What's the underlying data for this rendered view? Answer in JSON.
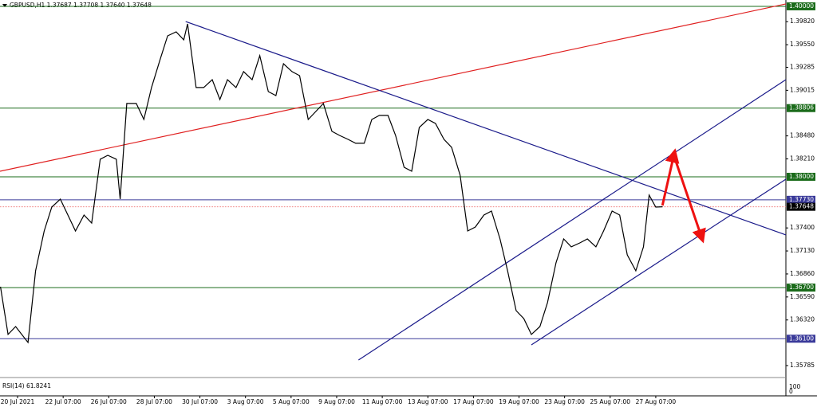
{
  "chart_data": {
    "type": "line",
    "title": "GBPUSD,H1  1.37687 1.37708 1.37640 1.37648",
    "indicator_label": "RSI(14) 61.8241",
    "indicator_ticks": [
      "100",
      "0"
    ],
    "x": [
      -18,
      -10,
      -2,
      11,
      19,
      28,
      36,
      45,
      53,
      61,
      70,
      78,
      87,
      95,
      104,
      108,
      115,
      125,
      133,
      141,
      150,
      158,
      167,
      175,
      179,
      188,
      196,
      205,
      213,
      221,
      230,
      238,
      247,
      255,
      264,
      272,
      280,
      289,
      297,
      306,
      314,
      322,
      331,
      339,
      348,
      356,
      365,
      373,
      381,
      390,
      398,
      407,
      415,
      423,
      432,
      440,
      449,
      457,
      466,
      474,
      482,
      491,
      499,
      508,
      516,
      525,
      533,
      541,
      550,
      558,
      567,
      575,
      583,
      592,
      600,
      609,
      617,
      626,
      634,
      642,
      651,
      659,
      665,
      672,
      679
    ],
    "series": [
      {
        "name": "GBPUSD",
        "color": "#000000",
        "values": [
          1.3671,
          1.3615,
          1.36243,
          1.36056,
          1.36897,
          1.37364,
          1.37645,
          1.37738,
          1.37551,
          1.37364,
          1.37551,
          1.37458,
          1.38206,
          1.38252,
          1.38206,
          1.37738,
          1.3886,
          1.3886,
          1.38673,
          1.39047,
          1.39374,
          1.39654,
          1.39701,
          1.39607,
          1.39794,
          1.39047,
          1.39047,
          1.3914,
          1.38907,
          1.3914,
          1.39047,
          1.39234,
          1.3914,
          1.39421,
          1.39,
          1.38953,
          1.39327,
          1.39234,
          1.39187,
          1.38673,
          1.38766,
          1.3886,
          1.38533,
          1.38486,
          1.38439,
          1.38393,
          1.38393,
          1.38673,
          1.3872,
          1.3872,
          1.38486,
          1.38112,
          1.38065,
          1.38579,
          1.38673,
          1.38626,
          1.38439,
          1.38346,
          1.38019,
          1.37364,
          1.37411,
          1.37551,
          1.37598,
          1.37271,
          1.36897,
          1.3643,
          1.36336,
          1.3615,
          1.36243,
          1.36523,
          1.36991,
          1.37271,
          1.37178,
          1.37224,
          1.37271,
          1.37178,
          1.37364,
          1.37598,
          1.37551,
          1.37084,
          1.36897,
          1.37178,
          1.37785,
          1.37645,
          1.37648
        ]
      }
    ],
    "xlim": [
      -18.5,
      809
    ],
    "xticks": [
      {
        "value": 0,
        "label": "20 Jul 2021"
      },
      {
        "value": 48,
        "label": "22 Jul 07:00"
      },
      {
        "value": 96,
        "label": "26 Jul 07:00"
      },
      {
        "value": 144,
        "label": "28 Jul 07:00"
      },
      {
        "value": 192,
        "label": "30 Jul 07:00"
      },
      {
        "value": 240,
        "label": "3 Aug 07:00"
      },
      {
        "value": 288,
        "label": "5 Aug 07:00"
      },
      {
        "value": 336,
        "label": "9 Aug 07:00"
      },
      {
        "value": 384,
        "label": "11 Aug 07:00"
      },
      {
        "value": 432,
        "label": "13 Aug 07:00"
      },
      {
        "value": 480,
        "label": "17 Aug 07:00"
      },
      {
        "value": 528,
        "label": "19 Aug 07:00"
      },
      {
        "value": 576,
        "label": "23 Aug 07:00"
      },
      {
        "value": 624,
        "label": "25 Aug 07:00"
      },
      {
        "value": 672,
        "label": "27 Aug 07:00"
      }
    ],
    "ylim": [
      1.35682,
      1.40037
    ],
    "yticks": [
      {
        "value": 1.3982,
        "label": "1.39820"
      },
      {
        "value": 1.3955,
        "label": "1.39550"
      },
      {
        "value": 1.39285,
        "label": "1.39285"
      },
      {
        "value": 1.39015,
        "label": "1.39015"
      },
      {
        "value": 1.3848,
        "label": "1.38480"
      },
      {
        "value": 1.3821,
        "label": "1.38210"
      },
      {
        "value": 1.374,
        "label": "1.37400"
      },
      {
        "value": 1.3713,
        "label": "1.37130"
      },
      {
        "value": 1.3686,
        "label": "1.36860"
      },
      {
        "value": 1.3659,
        "label": "1.36590"
      },
      {
        "value": 1.3632,
        "label": "1.36320"
      },
      {
        "value": 1.35785,
        "label": "1.35785"
      }
    ],
    "levels": [
      {
        "value": 1.4,
        "label": "1.40000",
        "color": "#1a6b1a"
      },
      {
        "value": 1.38806,
        "label": "1.38806",
        "color": "#1a6b1a"
      },
      {
        "value": 1.38,
        "label": "1.38000",
        "color": "#1a6b1a"
      },
      {
        "value": 1.3773,
        "label": "1.37730",
        "color": "#3a3a9a"
      },
      {
        "value": 1.37648,
        "label": "1.37648",
        "color": "#000000"
      },
      {
        "value": 1.367,
        "label": "1.36700",
        "color": "#1a6b1a"
      },
      {
        "value": 1.361,
        "label": "1.36100",
        "color": "#3a3a9a"
      }
    ],
    "trendlines": [
      {
        "x": [
          -18.5,
          809
        ],
        "y": [
          1.38065,
          1.40028
        ],
        "color": "#e02020"
      },
      {
        "x": [
          177,
          809
        ],
        "y": [
          1.39822,
          1.37318
        ],
        "color": "#1a1a8a"
      },
      {
        "x": [
          359,
          809
        ],
        "y": [
          1.3585,
          1.3914
        ],
        "color": "#1a1a8a"
      },
      {
        "x": [
          541,
          809
        ],
        "y": [
          1.36028,
          1.37972
        ],
        "color": "#1a1a8a"
      }
    ],
    "arrows": {
      "color": "#ee1111",
      "x": [
        679,
        691,
        720
      ],
      "y": [
        1.37664,
        1.38252,
        1.37299
      ]
    }
  }
}
